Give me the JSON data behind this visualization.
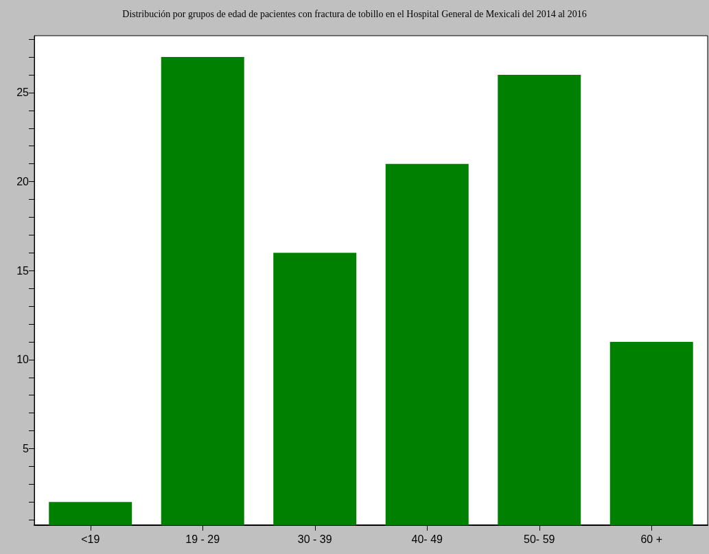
{
  "chart_data": {
    "type": "bar",
    "title": "Distribución por grupos de edad de pacientes con fractura de tobillo en el Hospital General de Mexicali del 2014 al 2016",
    "categories": [
      "<19",
      "19 - 29",
      "30 - 39",
      "40- 49",
      "50- 59",
      "60 +"
    ],
    "values": [
      2,
      27,
      16,
      21,
      26,
      11
    ],
    "color": "#008000",
    "ylim": [
      0.7,
      28.2
    ],
    "yticks": [
      {
        "value": 1,
        "label": null
      },
      {
        "value": 2,
        "label": null
      },
      {
        "value": 3,
        "label": null
      },
      {
        "value": 4,
        "label": null
      },
      5,
      {
        "value": 6,
        "label": null
      },
      {
        "value": 7,
        "label": null
      },
      {
        "value": 8,
        "label": null
      },
      {
        "value": 9,
        "label": null
      },
      10,
      {
        "value": 11,
        "label": null
      },
      {
        "value": 12,
        "label": null
      },
      {
        "value": 13,
        "label": null
      },
      {
        "value": 14,
        "label": null
      },
      15,
      {
        "value": 16,
        "label": null
      },
      {
        "value": 17,
        "label": null
      },
      {
        "value": 18,
        "label": null
      },
      {
        "value": 19,
        "label": null
      },
      20,
      {
        "value": 21,
        "label": null
      },
      {
        "value": 22,
        "label": null
      },
      {
        "value": 23,
        "label": null
      },
      {
        "value": 24,
        "label": null
      },
      25,
      {
        "value": 26,
        "label": null
      },
      {
        "value": 27,
        "label": null
      },
      {
        "value": 28,
        "label": null
      }
    ],
    "grid": false
  }
}
